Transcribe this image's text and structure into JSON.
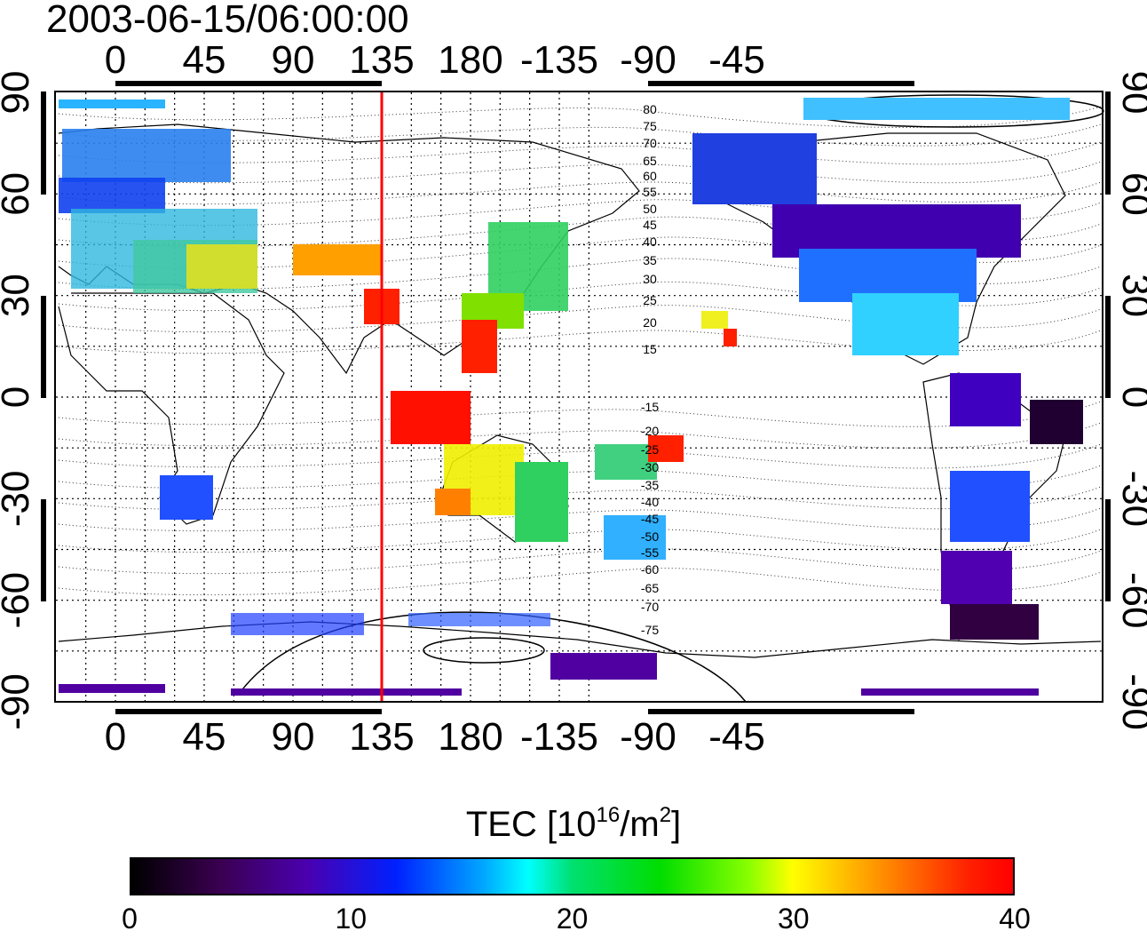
{
  "timestamp": "2003-06-15/06:00:00",
  "x_ticks": [
    "0",
    "45",
    "90",
    "135",
    "180",
    "-135",
    "-90",
    "-45"
  ],
  "y_ticks": [
    "90",
    "60",
    "30",
    "0",
    "-30",
    "-60",
    "-90"
  ],
  "magnetic_lat_labels": [
    "80",
    "75",
    "70",
    "65",
    "60",
    "55",
    "50",
    "45",
    "40",
    "35",
    "30",
    "25",
    "20",
    "15",
    "-15",
    "-20",
    "-25",
    "-30",
    "-35",
    "-40",
    "-45",
    "-50",
    "-55",
    "-60",
    "-65",
    "-70",
    "-75"
  ],
  "colorbar": {
    "title_prefix": "TEC  [10",
    "title_exp1": "16",
    "title_mid": "/m",
    "title_exp2": "2",
    "title_suffix": "]",
    "ticks": [
      "0",
      "10",
      "20",
      "30",
      "40"
    ],
    "min": 0,
    "max": 40
  },
  "colors": {
    "subsolar_line": "#ff0000",
    "grid": "#000000"
  }
}
